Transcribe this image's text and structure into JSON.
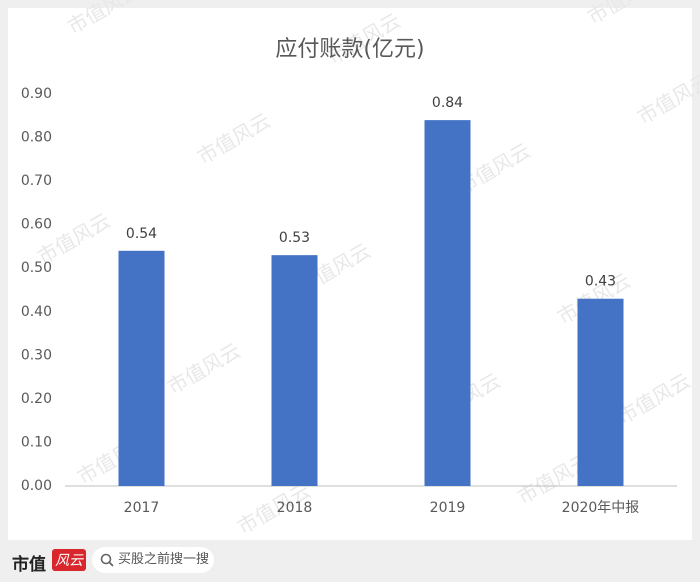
{
  "chart_data": {
    "type": "bar",
    "title": "应付账款(亿元)",
    "categories": [
      "2017",
      "2018",
      "2019",
      "2020年中报"
    ],
    "values": [
      0.54,
      0.53,
      0.84,
      0.43
    ],
    "color": "#4472c4",
    "ylim": [
      0,
      0.9
    ],
    "yticks": [
      {
        "value": 0,
        "label": "0.00"
      },
      {
        "value": 0.1,
        "label": "0.10"
      },
      {
        "value": 0.2,
        "label": "0.20"
      },
      {
        "value": 0.3,
        "label": "0.30"
      },
      {
        "value": 0.4,
        "label": "0.40"
      },
      {
        "value": 0.5,
        "label": "0.50"
      },
      {
        "value": 0.6,
        "label": "0.60"
      },
      {
        "value": 0.7,
        "label": "0.70"
      },
      {
        "value": 0.8,
        "label": "0.80"
      },
      {
        "value": 0.9,
        "label": "0.90"
      }
    ],
    "grid": false
  },
  "watermark": "市值风云",
  "footer": {
    "logo_text": "市值",
    "logo_badge": "风云",
    "search_placeholder": "买股之前搜一搜"
  }
}
